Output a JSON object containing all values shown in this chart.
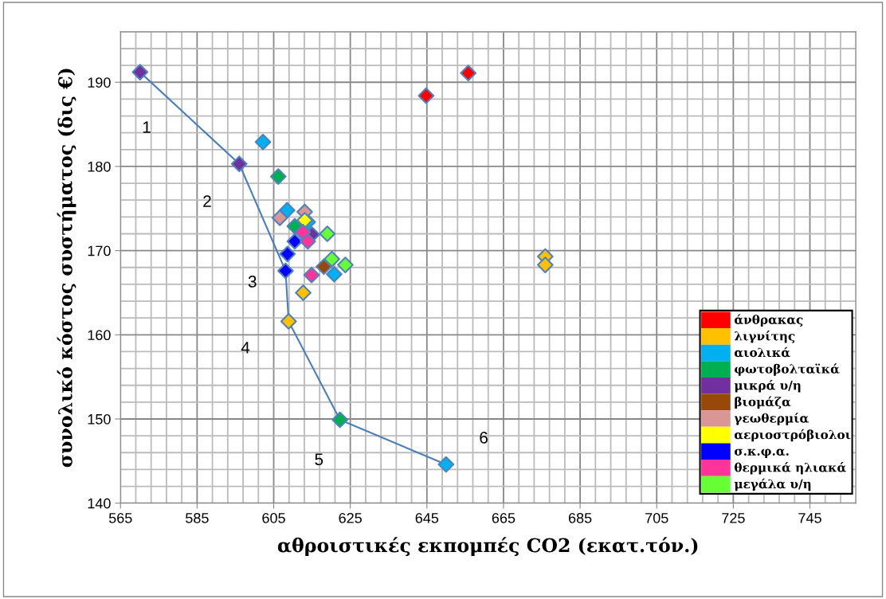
{
  "chart_data": {
    "type": "scatter",
    "xlabel": "αθροιστικές εκπομπές CO2 (εκατ.τόν.)",
    "ylabel": "συνολικό κόστος συστήματος (δις €)",
    "xlim": [
      565,
      757
    ],
    "ylim": [
      140,
      196
    ],
    "xticks": [
      565,
      {
        "value": 569,
        "label": null
      },
      {
        "value": 573,
        "label": null
      },
      {
        "value": 577,
        "label": null
      },
      {
        "value": 581,
        "label": null
      },
      585,
      {
        "value": 589,
        "label": null
      },
      {
        "value": 593,
        "label": null
      },
      {
        "value": 597,
        "label": null
      },
      {
        "value": 601,
        "label": null
      },
      605,
      {
        "value": 609,
        "label": null
      },
      {
        "value": 613,
        "label": null
      },
      {
        "value": 617,
        "label": null
      },
      {
        "value": 621,
        "label": null
      },
      625,
      {
        "value": 629,
        "label": null
      },
      {
        "value": 633,
        "label": null
      },
      {
        "value": 637,
        "label": null
      },
      {
        "value": 641,
        "label": null
      },
      645,
      {
        "value": 649,
        "label": null
      },
      {
        "value": 653,
        "label": null
      },
      {
        "value": 657,
        "label": null
      },
      {
        "value": 661,
        "label": null
      },
      665,
      {
        "value": 669,
        "label": null
      },
      {
        "value": 673,
        "label": null
      },
      {
        "value": 677,
        "label": null
      },
      {
        "value": 681,
        "label": null
      },
      685,
      {
        "value": 689,
        "label": null
      },
      {
        "value": 693,
        "label": null
      },
      {
        "value": 697,
        "label": null
      },
      {
        "value": 701,
        "label": null
      },
      705,
      {
        "value": 709,
        "label": null
      },
      {
        "value": 713,
        "label": null
      },
      {
        "value": 717,
        "label": null
      },
      {
        "value": 721,
        "label": null
      },
      725,
      {
        "value": 729,
        "label": null
      },
      {
        "value": 733,
        "label": null
      },
      {
        "value": 737,
        "label": null
      },
      {
        "value": 741,
        "label": null
      },
      745,
      {
        "value": 749,
        "label": null
      },
      {
        "value": 753,
        "label": null
      },
      {
        "value": 757,
        "label": null
      }
    ],
    "yticks": [
      140,
      {
        "value": 142,
        "label": null
      },
      {
        "value": 144,
        "label": null
      },
      {
        "value": 146,
        "label": null
      },
      {
        "value": 148,
        "label": null
      },
      150,
      {
        "value": 152,
        "label": null
      },
      {
        "value": 154,
        "label": null
      },
      {
        "value": 156,
        "label": null
      },
      {
        "value": 158,
        "label": null
      },
      160,
      {
        "value": 162,
        "label": null
      },
      {
        "value": 164,
        "label": null
      },
      {
        "value": 166,
        "label": null
      },
      {
        "value": 168,
        "label": null
      },
      170,
      {
        "value": 172,
        "label": null
      },
      {
        "value": 174,
        "label": null
      },
      {
        "value": 176,
        "label": null
      },
      {
        "value": 178,
        "label": null
      },
      180,
      {
        "value": 182,
        "label": null
      },
      {
        "value": 184,
        "label": null
      },
      {
        "value": 186,
        "label": null
      },
      {
        "value": 188,
        "label": null
      },
      190,
      {
        "value": 192,
        "label": null
      },
      {
        "value": 194,
        "label": null
      },
      {
        "value": 196,
        "label": null
      }
    ],
    "grid": true,
    "legend": "bottom right",
    "series": [
      {
        "type": "line",
        "color": "#4a7ebb",
        "marker": "none",
        "x": [
          570.1,
          596.0,
          608.1,
          608.9,
          622.3,
          650.0
        ],
        "values": [
          191.2,
          180.3,
          167.6,
          161.6,
          149.9,
          144.6
        ]
      },
      {
        "name": "άνθρακας",
        "marker": "diamond",
        "color": "#ff0000",
        "x": [
          655.8,
          644.8
        ],
        "values": [
          191.1,
          188.4
        ]
      },
      {
        "name": "λιγνίτης",
        "marker": "diamond",
        "color": "#ffc000",
        "x": [
          612.7,
          608.9,
          675.9,
          675.9
        ],
        "values": [
          165.0,
          161.6,
          169.3,
          168.3
        ]
      },
      {
        "name": "αιολικά",
        "marker": "diamond",
        "color": "#00b0f0",
        "x": [
          602.2,
          608.5,
          613.9,
          620.8,
          650.0
        ],
        "values": [
          182.9,
          174.8,
          173.4,
          167.2,
          144.6
        ]
      },
      {
        "name": "φωτοβολταϊκά",
        "marker": "diamond",
        "color": "#00b050",
        "x": [
          606.2,
          610.5,
          622.3
        ],
        "values": [
          178.8,
          172.9,
          149.9
        ]
      },
      {
        "name": "μικρά υ/η",
        "marker": "diamond",
        "color": "#7030a0",
        "x": [
          570.1,
          596.0,
          615.0
        ],
        "values": [
          191.2,
          180.3,
          171.9
        ]
      },
      {
        "name": "βιομάζα",
        "marker": "diamond",
        "color": "#984807",
        "x": [
          618.1
        ],
        "values": [
          168.1
        ]
      },
      {
        "name": "γεωθερμία",
        "marker": "diamond",
        "color": "#d99694",
        "x": [
          606.6,
          613.1
        ],
        "values": [
          173.9,
          174.6
        ]
      },
      {
        "name": "αεριοστρόβιολοι",
        "marker": "diamond",
        "color": "#ffff00",
        "x": [
          613.1
        ],
        "values": [
          173.6
        ]
      },
      {
        "name": "σ.κ.φ.α.",
        "marker": "diamond",
        "color": "#0000ff",
        "x": [
          610.5,
          608.6,
          608.1
        ],
        "values": [
          171.1,
          169.6,
          167.6
        ]
      },
      {
        "name": "θερμικά ηλιακά",
        "marker": "diamond",
        "color": "#ff3399",
        "x": [
          612.6,
          613.9,
          614.9
        ],
        "values": [
          172.2,
          171.1,
          167.1
        ]
      },
      {
        "name": "μεγάλα υ/η",
        "marker": "diamond",
        "color": "#66ff33",
        "x": [
          619.0,
          620.2,
          623.7
        ],
        "values": [
          172.0,
          169.0,
          168.3
        ]
      }
    ],
    "annotations": [
      {
        "text": "1",
        "x": 570.1,
        "y": 191.2
      },
      {
        "text": "2",
        "x": 596.0,
        "y": 180.3
      },
      {
        "text": "3",
        "x": 608.1,
        "y": 167.6
      },
      {
        "text": "4",
        "x": 608.9,
        "y": 161.6
      },
      {
        "text": "5",
        "x": 622.3,
        "y": 149.9
      },
      {
        "text": "6",
        "x": 650.0,
        "y": 144.6
      }
    ]
  }
}
